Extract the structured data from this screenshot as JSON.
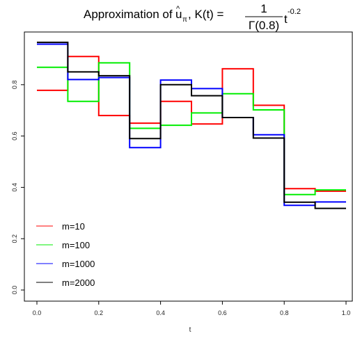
{
  "chart_data": {
    "type": "line",
    "step": true,
    "title": {
      "prefix": "Approximation of ",
      "u_symbol": "u",
      "hat": "^",
      "u_subscript": "π",
      "middle": ", K(t) = ",
      "numerator": "1",
      "denominator": "Γ(0.8)",
      "t_symbol": "t",
      "exponent": "-0.2"
    },
    "xlabel": "t",
    "ylabel": "",
    "xlim": [
      0,
      1
    ],
    "ylim": [
      0,
      1
    ],
    "x_ticks": [
      0.0,
      0.2,
      0.4,
      0.6,
      0.8,
      1.0
    ],
    "x_tick_labels": [
      "0.0",
      "0.2",
      "0.4",
      "0.6",
      "0.8",
      "1.0"
    ],
    "y_ticks": [
      0.0,
      0.2,
      0.4,
      0.6,
      0.8
    ],
    "y_tick_labels": [
      "0.0",
      "0.2",
      "0.4",
      "0.6",
      "0.8"
    ],
    "grid": false,
    "legend_position": "bottom-left",
    "bin_edges": [
      0.0,
      0.1,
      0.2,
      0.3,
      0.4,
      0.5,
      0.6,
      0.7,
      0.8,
      0.9,
      1.0
    ],
    "series": [
      {
        "name": "m=10",
        "color": "#ff0000",
        "values": [
          0.778,
          0.91,
          0.68,
          0.65,
          0.735,
          0.647,
          0.862,
          0.72,
          0.395,
          0.385
        ]
      },
      {
        "name": "m=100",
        "color": "#00ee00",
        "values": [
          0.868,
          0.735,
          0.885,
          0.63,
          0.642,
          0.69,
          0.765,
          0.702,
          0.372,
          0.39
        ]
      },
      {
        "name": "m=1000",
        "color": "#0000ff",
        "values": [
          0.958,
          0.82,
          0.828,
          0.555,
          0.818,
          0.785,
          0.672,
          0.605,
          0.33,
          0.343
        ]
      },
      {
        "name": "m=2000",
        "color": "#000000",
        "values": [
          0.965,
          0.85,
          0.835,
          0.59,
          0.8,
          0.757,
          0.672,
          0.592,
          0.342,
          0.318
        ]
      }
    ]
  }
}
